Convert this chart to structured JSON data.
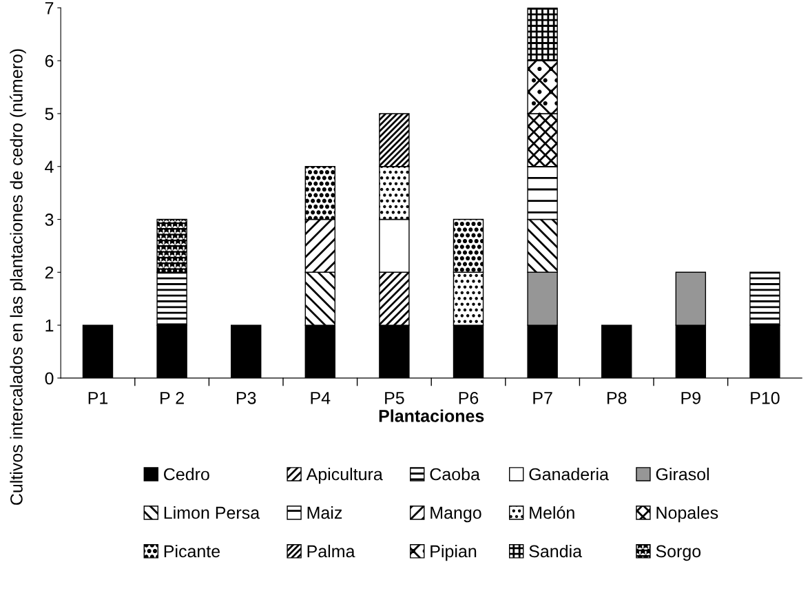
{
  "chart_data": {
    "type": "bar",
    "stacked": true,
    "xlabel": "Plantaciones",
    "ylabel": "Cultivos intercalados en las plantaciones de cedro (número)",
    "categories": [
      "P1",
      "P 2",
      "P3",
      "P4",
      "P5",
      "P6",
      "P7",
      "P8",
      "P9",
      "P10"
    ],
    "ylim": [
      0,
      7
    ],
    "yticks": [
      0,
      1,
      2,
      3,
      4,
      5,
      6,
      7
    ],
    "grid": false,
    "legend": "bottom",
    "series": [
      {
        "name": "Cedro",
        "color": "#000000",
        "values": [
          1,
          1,
          1,
          1,
          1,
          1,
          1,
          1,
          1,
          1
        ]
      },
      {
        "name": "Apicultura",
        "color": "#000000",
        "values": [
          null,
          null,
          null,
          null,
          1,
          null,
          null,
          null,
          null,
          null
        ]
      },
      {
        "name": "Caoba",
        "color": "#000000",
        "values": [
          null,
          1,
          null,
          null,
          null,
          null,
          null,
          null,
          null,
          1
        ]
      },
      {
        "name": "Ganaderia",
        "color": "#ffffff",
        "values": [
          null,
          null,
          null,
          null,
          1,
          null,
          null,
          null,
          null,
          null
        ]
      },
      {
        "name": "Girasol",
        "color": "#969696",
        "values": [
          null,
          null,
          null,
          null,
          null,
          null,
          1,
          null,
          1,
          null
        ]
      },
      {
        "name": "Limon Persa",
        "color": "#000000",
        "values": [
          null,
          null,
          null,
          1,
          null,
          null,
          1,
          null,
          null,
          null
        ]
      },
      {
        "name": "Maiz",
        "color": "#000000",
        "values": [
          null,
          null,
          null,
          null,
          null,
          null,
          1,
          null,
          null,
          null
        ]
      },
      {
        "name": "Mango",
        "color": "#000000",
        "values": [
          null,
          null,
          null,
          1,
          null,
          null,
          null,
          null,
          null,
          null
        ]
      },
      {
        "name": "Melón",
        "color": "#000000",
        "values": [
          null,
          null,
          null,
          null,
          1,
          1,
          null,
          null,
          null,
          null
        ]
      },
      {
        "name": "Nopales",
        "color": "#000000",
        "values": [
          null,
          null,
          null,
          null,
          null,
          null,
          1,
          null,
          null,
          null
        ]
      },
      {
        "name": "Picante",
        "color": "#000000",
        "values": [
          null,
          null,
          null,
          1,
          null,
          1,
          null,
          null,
          null,
          null
        ]
      },
      {
        "name": "Palma",
        "color": "#000000",
        "values": [
          null,
          null,
          null,
          null,
          1,
          null,
          null,
          null,
          null,
          null
        ]
      },
      {
        "name": "Pipian",
        "color": "#000000",
        "values": [
          null,
          null,
          null,
          null,
          null,
          null,
          1,
          null,
          null,
          null
        ]
      },
      {
        "name": "Sandia",
        "color": "#000000",
        "values": [
          null,
          null,
          null,
          null,
          null,
          null,
          1,
          null,
          null,
          null
        ]
      },
      {
        "name": "Sorgo",
        "color": "#000000",
        "values": [
          null,
          1,
          null,
          null,
          null,
          null,
          null,
          null,
          null,
          null
        ]
      }
    ]
  }
}
